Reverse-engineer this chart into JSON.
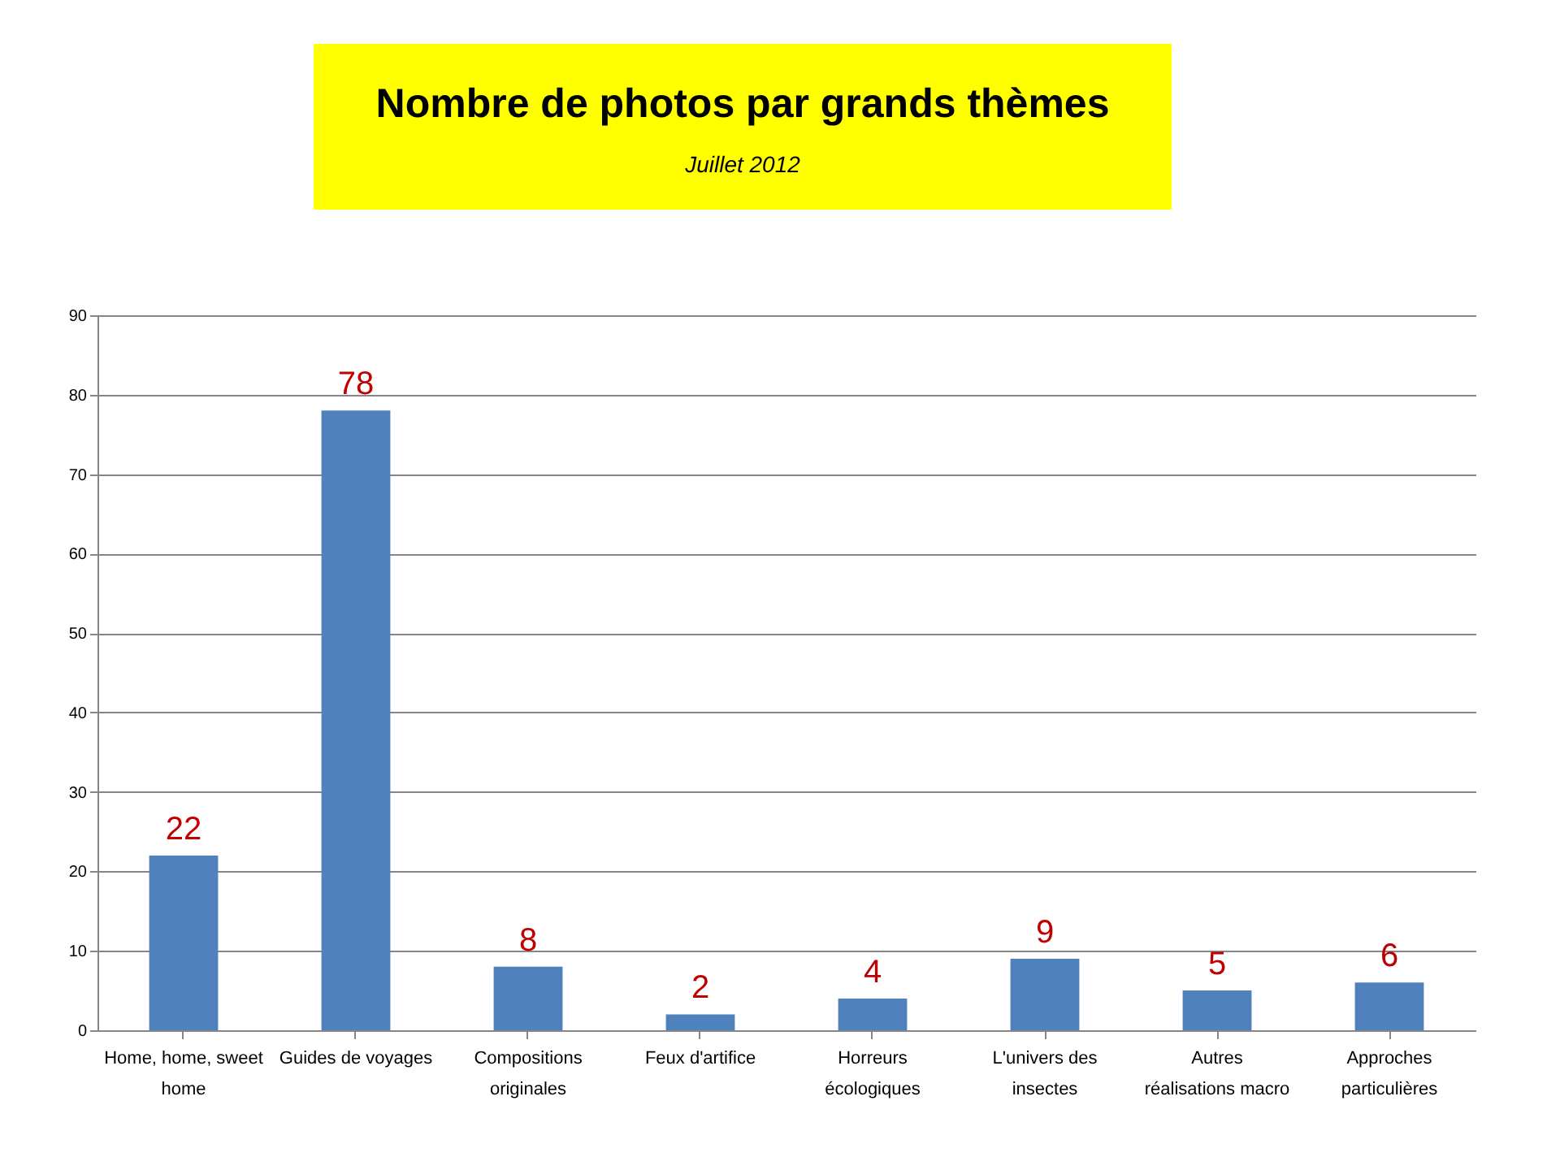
{
  "chart_data": {
    "type": "bar",
    "title": "Nombre de photos par grands thèmes",
    "subtitle": "Juillet 2012",
    "categories": [
      "Home, home, sweet home",
      "Guides de voyages",
      "Compositions originales",
      "Feux d'artifice",
      "Horreurs écologiques",
      "L'univers des insectes",
      "Autres réalisations macro",
      "Approches particulières"
    ],
    "values": [
      22,
      78,
      8,
      2,
      4,
      9,
      5,
      6
    ],
    "color": "#4f81bd",
    "data_labels": true,
    "ylim": [
      0,
      90
    ],
    "yticks": [
      0,
      10,
      20,
      30,
      40,
      50,
      60,
      70,
      80,
      90
    ],
    "grid": "y"
  }
}
